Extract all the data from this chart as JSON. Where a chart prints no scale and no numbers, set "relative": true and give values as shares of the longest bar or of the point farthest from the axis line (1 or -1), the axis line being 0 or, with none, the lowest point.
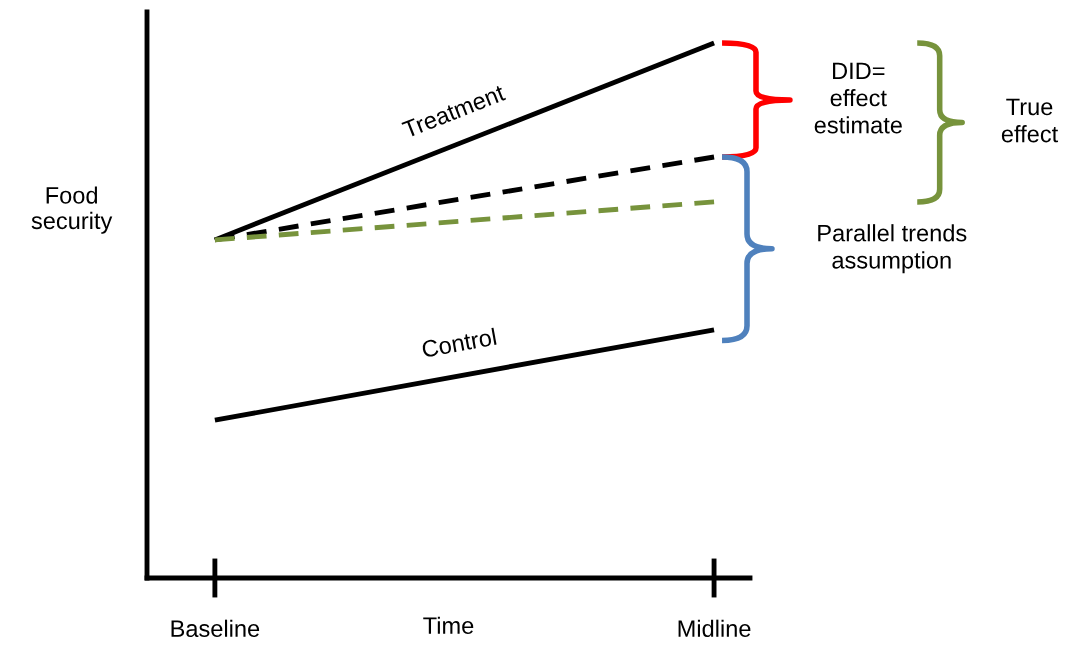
{
  "chart_data": {
    "type": "line",
    "relative": true,
    "xlabel": "Time",
    "ylabel": "Food\nsecurity",
    "categories": [
      "Baseline",
      "Midline"
    ],
    "line_style": "solid",
    "tick_labels": "x",
    "series": [
      {
        "name": "Treatment",
        "color": "#000000",
        "values": [
          0.632,
          1
        ]
      },
      {
        "name": "Control",
        "color": "#000000",
        "values": [
          0.295,
          0.464
        ]
      },
      {
        "color": "#000000",
        "values": [
          0.632,
          0.787
        ],
        "line_style": "dashed"
      },
      {
        "color": "#77933c",
        "values": [
          0.632,
          0.703
        ],
        "line_style": "dashed"
      }
    ],
    "annotations": [
      "DID=\neffect\nestimate",
      "True\neffect",
      "Parallel trends\nassumption"
    ]
  }
}
